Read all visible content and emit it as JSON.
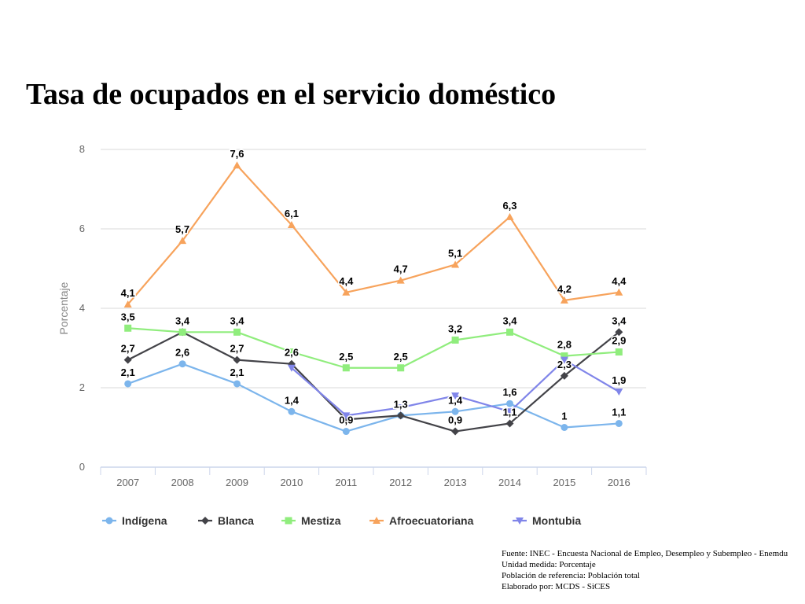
{
  "title": "Tasa de ocupados en el servicio doméstico",
  "chart_data": {
    "type": "line",
    "ylabel": "Porcentaje",
    "xlabel": "",
    "ylim": [
      0,
      8
    ],
    "yticks": [
      0,
      2,
      4,
      6,
      8
    ],
    "grid": true,
    "legend_position": "bottom",
    "categories": [
      "2007",
      "2008",
      "2009",
      "2010",
      "2011",
      "2012",
      "2013",
      "2014",
      "2015",
      "2016"
    ],
    "series": [
      {
        "name": "Indígena",
        "marker": "circle",
        "color": "#7cb5ec",
        "values": [
          2.1,
          2.6,
          2.1,
          1.4,
          0.9,
          1.3,
          1.4,
          1.6,
          1.0,
          1.1
        ],
        "labels": [
          "2,1",
          "2,6",
          "2,1",
          "1,4",
          "0,9",
          "1,3",
          "1,4",
          "1,6",
          "1",
          "1,1"
        ]
      },
      {
        "name": "Blanca",
        "marker": "diamond",
        "color": "#434348",
        "values": [
          2.7,
          3.4,
          2.7,
          2.6,
          1.2,
          1.3,
          0.9,
          1.1,
          2.3,
          3.4
        ],
        "labels": [
          "2,7",
          "3,4",
          "2,7",
          "2,6",
          "",
          "",
          "0,9",
          "1,1",
          "2,3",
          "3,4"
        ]
      },
      {
        "name": "Mestiza",
        "marker": "square",
        "color": "#90ed7d",
        "values": [
          3.5,
          3.4,
          3.4,
          2.9,
          2.5,
          2.5,
          3.2,
          3.4,
          2.8,
          2.9
        ],
        "labels": [
          "3,5",
          "",
          "3,4",
          "",
          "2,5",
          "2,5",
          "3,2",
          "3,4",
          "2,8",
          "2,9"
        ]
      },
      {
        "name": "Afroecuatoriana",
        "marker": "triangle",
        "color": "#f7a35c",
        "values": [
          4.1,
          5.7,
          7.6,
          6.1,
          4.4,
          4.7,
          5.1,
          6.3,
          4.2,
          4.4
        ],
        "labels": [
          "4,1",
          "5,7",
          "7,6",
          "6,1",
          "4,4",
          "4,7",
          "5,1",
          "6,3",
          "4,2",
          "4,4"
        ]
      },
      {
        "name": "Montubia",
        "marker": "triangle-down",
        "color": "#8085e9",
        "values": [
          null,
          null,
          null,
          2.5,
          1.3,
          1.5,
          1.8,
          1.4,
          2.7,
          1.9
        ],
        "labels": [
          "",
          "",
          "",
          "",
          "",
          "",
          "",
          "",
          "",
          "1,9"
        ]
      }
    ]
  },
  "source": {
    "fuente": "Fuente: INEC - Encuesta Nacional de Empleo, Desempleo y Subempleo - Enemdu",
    "unidad": "Unidad medida: Porcentaje",
    "poblacion": "Población de referencia: Población total",
    "elaborado": "Elaborado por: MCDS - SiCES"
  }
}
